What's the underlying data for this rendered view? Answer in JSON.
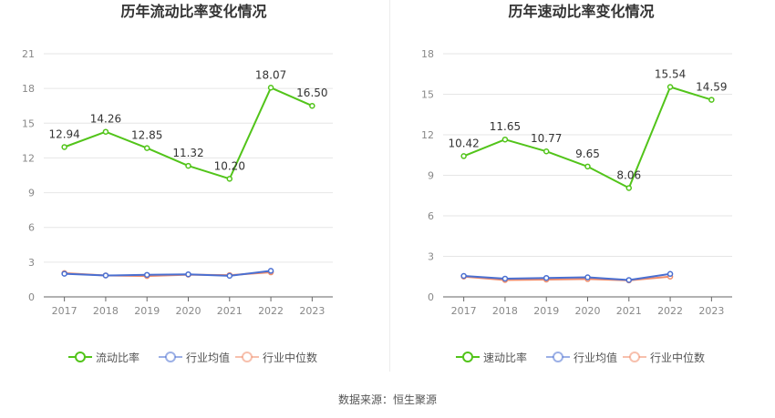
{
  "chart_data": [
    {
      "type": "line",
      "title": "历年流动比率变化情况",
      "categories": [
        "2017",
        "2018",
        "2019",
        "2020",
        "2021",
        "2022",
        "2023"
      ],
      "ylim": [
        0,
        21
      ],
      "yticks": [
        "0",
        "3",
        "6",
        "9",
        "12",
        "15",
        "18",
        "21"
      ],
      "grid": true,
      "legend_position": "bottom",
      "series": [
        {
          "name": "流动比率",
          "color": "#52c41a",
          "values": [
            12.94,
            14.26,
            12.85,
            11.32,
            10.2,
            18.07,
            16.5
          ],
          "labels": [
            "12.94",
            "14.26",
            "12.85",
            "11.32",
            "10.20",
            "18.07",
            "16.50"
          ]
        },
        {
          "name": "行业均值",
          "color": "#4a6fd1",
          "values": [
            2.0,
            1.85,
            1.9,
            1.95,
            1.82,
            2.25,
            null
          ]
        },
        {
          "name": "行业中位数",
          "color": "#f08c6a",
          "values": [
            2.05,
            1.85,
            1.8,
            1.92,
            1.88,
            2.12,
            null
          ]
        }
      ]
    },
    {
      "type": "line",
      "title": "历年速动比率变化情况",
      "categories": [
        "2017",
        "2018",
        "2019",
        "2020",
        "2021",
        "2022",
        "2023"
      ],
      "ylim": [
        0,
        18
      ],
      "yticks": [
        "0",
        "3",
        "6",
        "9",
        "12",
        "15",
        "18"
      ],
      "grid": true,
      "legend_position": "bottom",
      "series": [
        {
          "name": "速动比率",
          "color": "#52c41a",
          "values": [
            10.42,
            11.65,
            10.77,
            9.65,
            8.06,
            15.54,
            14.59
          ],
          "labels": [
            "10.42",
            "11.65",
            "10.77",
            "9.65",
            "8.06",
            "15.54",
            "14.59"
          ]
        },
        {
          "name": "行业均值",
          "color": "#4a6fd1",
          "values": [
            1.55,
            1.35,
            1.4,
            1.45,
            1.25,
            1.7,
            null
          ]
        },
        {
          "name": "行业中位数",
          "color": "#f08c6a",
          "values": [
            1.5,
            1.25,
            1.28,
            1.32,
            1.22,
            1.5,
            null
          ]
        }
      ]
    }
  ],
  "source_text": "数据来源：恒生聚源"
}
